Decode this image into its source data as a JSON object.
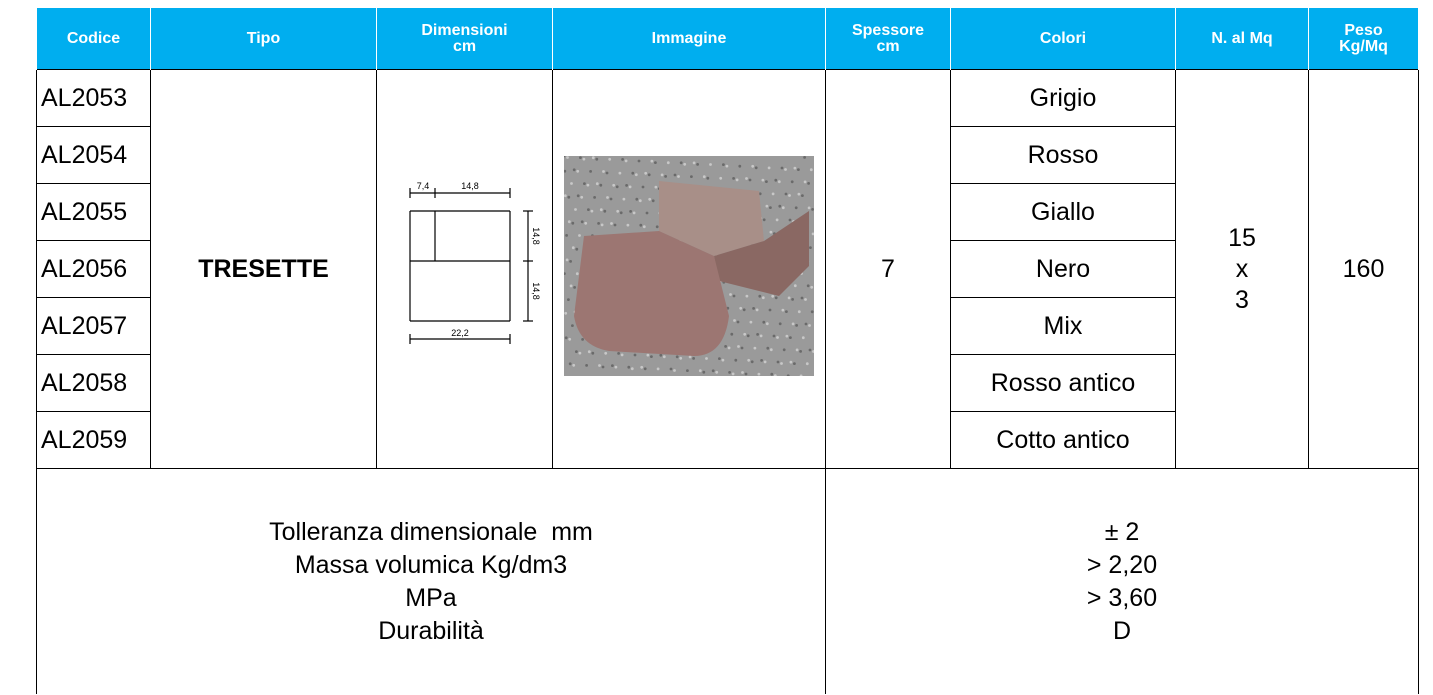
{
  "header": [
    "Codice",
    "Tipo",
    "Dimensioni cm",
    "Immagine",
    "Spessore cm",
    "Colori",
    "N. al Mq",
    "Peso Kg/Mq"
  ],
  "codes": [
    "AL2053",
    "AL2054",
    "AL2055",
    "AL2056",
    "AL2057",
    "AL2058",
    "AL2059"
  ],
  "tipo": "TRESETTE",
  "diagram": {
    "top_left": "7,4",
    "top_right": "14,8",
    "side_top": "14,8",
    "side_bottom": "14,8",
    "bottom": "22,2"
  },
  "spessore": "7",
  "colori": [
    "Grigio",
    "Rosso",
    "Giallo",
    "Nero",
    "Mix",
    "Rosso antico",
    "Cotto antico"
  ],
  "n_al_mq": [
    "15",
    "x",
    "3"
  ],
  "peso": "160",
  "properties": [
    "Tolleranza dimensionale  mm",
    "Massa volumica Kg/dm3",
    "MPa",
    "Durabilità"
  ],
  "property_values": [
    "± 2",
    "> 2,20",
    "> 3,60",
    "D"
  ]
}
